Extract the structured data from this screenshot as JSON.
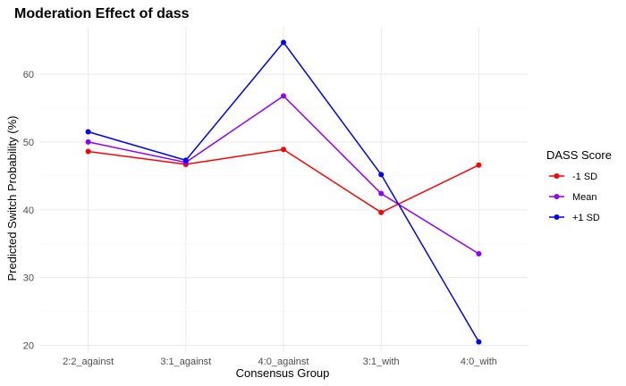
{
  "chart_data": {
    "type": "line",
    "title": "Moderation Effect of dass",
    "xlabel": "Consensus Group",
    "ylabel": "Predicted Switch Probability (%)",
    "categories": [
      "2:2_against",
      "3:1_against",
      "4:0_against",
      "3:1_with",
      "4:0_with"
    ],
    "yticks": [
      20,
      30,
      40,
      50,
      60
    ],
    "ylim": [
      19,
      67
    ],
    "grid": true,
    "legend": {
      "title": "DASS Score",
      "position": "right"
    },
    "series": [
      {
        "name": "-1 SD",
        "color": "#ff0000",
        "values": [
          48.6,
          46.7,
          48.9,
          39.6,
          46.6
        ]
      },
      {
        "name": "Mean",
        "color": "#9000ff",
        "values": [
          50.0,
          47.0,
          56.8,
          42.4,
          33.5
        ]
      },
      {
        "name": "+1 SD",
        "color": "#0000ff",
        "values": [
          51.5,
          47.3,
          64.7,
          45.2,
          20.5
        ]
      }
    ]
  }
}
